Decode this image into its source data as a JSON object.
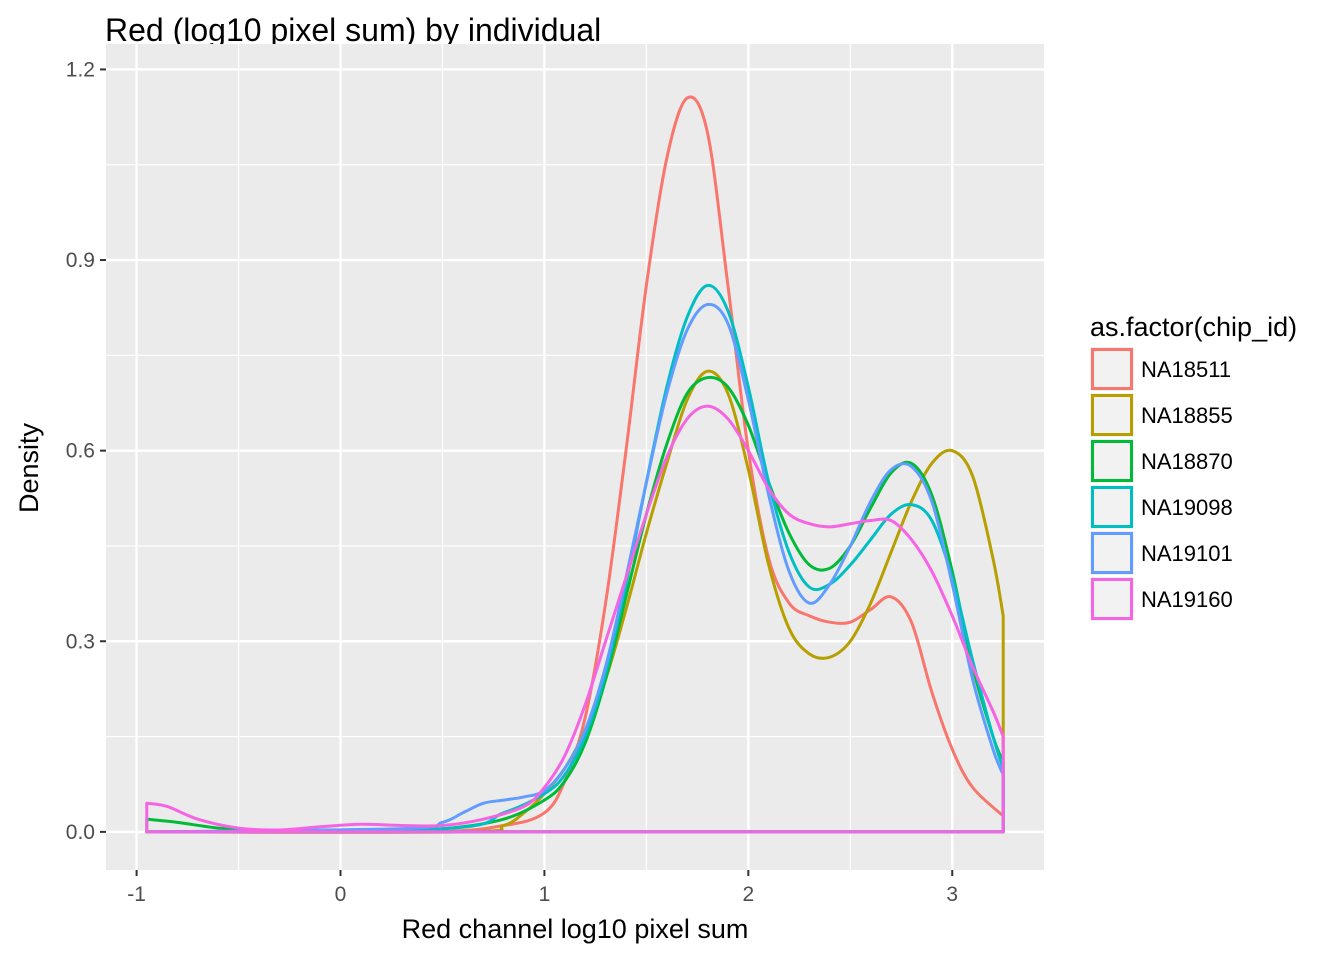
{
  "chart_data": {
    "type": "line",
    "title": "Red (log10 pixel sum) by individual",
    "xlabel": "Red channel log10 pixel sum",
    "ylabel": "Density",
    "xlim": [
      -1.15,
      3.45
    ],
    "ylim": [
      -0.06,
      1.24
    ],
    "x_ticks": [
      -1,
      0,
      1,
      2,
      3
    ],
    "x_tick_labels": [
      "-1",
      "0",
      "1",
      "2",
      "3"
    ],
    "y_ticks": [
      0.0,
      0.3,
      0.6,
      0.9,
      1.2
    ],
    "y_tick_labels": [
      "0.0",
      "0.3",
      "0.6",
      "0.9",
      "1.2"
    ],
    "grid": true,
    "panel_background": "#ebebeb",
    "legend": {
      "title": "as.factor(chip_id)",
      "placement": "right"
    },
    "series": [
      {
        "name": "NA18511",
        "color": "#F8766D",
        "points": [
          [
            -0.95,
            0
          ],
          [
            0.4,
            0.0
          ],
          [
            0.8,
            0.01
          ],
          [
            1.0,
            0.03
          ],
          [
            1.1,
            0.08
          ],
          [
            1.2,
            0.18
          ],
          [
            1.3,
            0.36
          ],
          [
            1.4,
            0.6
          ],
          [
            1.5,
            0.86
          ],
          [
            1.6,
            1.06
          ],
          [
            1.7,
            1.155
          ],
          [
            1.8,
            1.1
          ],
          [
            1.9,
            0.86
          ],
          [
            2.0,
            0.6
          ],
          [
            2.1,
            0.43
          ],
          [
            2.2,
            0.36
          ],
          [
            2.3,
            0.34
          ],
          [
            2.4,
            0.33
          ],
          [
            2.5,
            0.33
          ],
          [
            2.6,
            0.35
          ],
          [
            2.7,
            0.37
          ],
          [
            2.8,
            0.33
          ],
          [
            2.9,
            0.22
          ],
          [
            3.0,
            0.13
          ],
          [
            3.1,
            0.07
          ],
          [
            3.25,
            0.025
          ]
        ]
      },
      {
        "name": "NA18855",
        "color": "#B79F00",
        "points": [
          [
            -0.95,
            0
          ],
          [
            0.6,
            0.0
          ],
          [
            0.8,
            0.01
          ],
          [
            0.9,
            0.03
          ],
          [
            1.0,
            0.06
          ],
          [
            1.1,
            0.1
          ],
          [
            1.2,
            0.16
          ],
          [
            1.3,
            0.24
          ],
          [
            1.4,
            0.35
          ],
          [
            1.5,
            0.47
          ],
          [
            1.6,
            0.58
          ],
          [
            1.7,
            0.68
          ],
          [
            1.8,
            0.725
          ],
          [
            1.9,
            0.69
          ],
          [
            2.0,
            0.57
          ],
          [
            2.1,
            0.42
          ],
          [
            2.2,
            0.32
          ],
          [
            2.3,
            0.28
          ],
          [
            2.4,
            0.275
          ],
          [
            2.5,
            0.3
          ],
          [
            2.6,
            0.36
          ],
          [
            2.7,
            0.44
          ],
          [
            2.8,
            0.52
          ],
          [
            2.9,
            0.58
          ],
          [
            3.0,
            0.6
          ],
          [
            3.1,
            0.56
          ],
          [
            3.2,
            0.43
          ],
          [
            3.25,
            0.34
          ]
        ]
      },
      {
        "name": "NA18870",
        "color": "#00BA38",
        "points": [
          [
            -0.95,
            0.02
          ],
          [
            -0.8,
            0.015
          ],
          [
            -0.6,
            0.006
          ],
          [
            -0.4,
            0.002
          ],
          [
            0.0,
            0.0
          ],
          [
            0.5,
            0.005
          ],
          [
            0.8,
            0.02
          ],
          [
            1.0,
            0.05
          ],
          [
            1.1,
            0.08
          ],
          [
            1.2,
            0.14
          ],
          [
            1.3,
            0.24
          ],
          [
            1.4,
            0.37
          ],
          [
            1.5,
            0.5
          ],
          [
            1.6,
            0.61
          ],
          [
            1.7,
            0.69
          ],
          [
            1.8,
            0.715
          ],
          [
            1.9,
            0.7
          ],
          [
            2.0,
            0.64
          ],
          [
            2.1,
            0.55
          ],
          [
            2.2,
            0.47
          ],
          [
            2.3,
            0.42
          ],
          [
            2.4,
            0.415
          ],
          [
            2.5,
            0.45
          ],
          [
            2.6,
            0.51
          ],
          [
            2.7,
            0.565
          ],
          [
            2.8,
            0.58
          ],
          [
            2.9,
            0.53
          ],
          [
            3.0,
            0.41
          ],
          [
            3.1,
            0.26
          ],
          [
            3.2,
            0.15
          ],
          [
            3.25,
            0.11
          ]
        ]
      },
      {
        "name": "NA19098",
        "color": "#00BFC4",
        "points": [
          [
            -0.95,
            0
          ],
          [
            0.5,
            0.005
          ],
          [
            0.8,
            0.03
          ],
          [
            1.0,
            0.06
          ],
          [
            1.1,
            0.09
          ],
          [
            1.2,
            0.15
          ],
          [
            1.3,
            0.25
          ],
          [
            1.4,
            0.39
          ],
          [
            1.5,
            0.55
          ],
          [
            1.6,
            0.7
          ],
          [
            1.7,
            0.81
          ],
          [
            1.8,
            0.86
          ],
          [
            1.9,
            0.82
          ],
          [
            2.0,
            0.7
          ],
          [
            2.1,
            0.55
          ],
          [
            2.2,
            0.44
          ],
          [
            2.3,
            0.385
          ],
          [
            2.4,
            0.39
          ],
          [
            2.5,
            0.42
          ],
          [
            2.6,
            0.46
          ],
          [
            2.7,
            0.5
          ],
          [
            2.8,
            0.515
          ],
          [
            2.9,
            0.49
          ],
          [
            3.0,
            0.4
          ],
          [
            3.1,
            0.27
          ],
          [
            3.2,
            0.15
          ],
          [
            3.25,
            0.1
          ]
        ]
      },
      {
        "name": "NA19101",
        "color": "#619CFF",
        "points": [
          [
            -0.95,
            0
          ],
          [
            0.3,
            0.005
          ],
          [
            0.5,
            0.015
          ],
          [
            0.6,
            0.03
          ],
          [
            0.7,
            0.045
          ],
          [
            0.8,
            0.05
          ],
          [
            0.9,
            0.055
          ],
          [
            1.0,
            0.065
          ],
          [
            1.1,
            0.1
          ],
          [
            1.2,
            0.16
          ],
          [
            1.3,
            0.26
          ],
          [
            1.4,
            0.4
          ],
          [
            1.5,
            0.55
          ],
          [
            1.6,
            0.69
          ],
          [
            1.7,
            0.79
          ],
          [
            1.8,
            0.83
          ],
          [
            1.9,
            0.8
          ],
          [
            2.0,
            0.68
          ],
          [
            2.1,
            0.53
          ],
          [
            2.2,
            0.41
          ],
          [
            2.3,
            0.36
          ],
          [
            2.4,
            0.39
          ],
          [
            2.5,
            0.45
          ],
          [
            2.6,
            0.52
          ],
          [
            2.7,
            0.57
          ],
          [
            2.8,
            0.575
          ],
          [
            2.9,
            0.52
          ],
          [
            3.0,
            0.39
          ],
          [
            3.1,
            0.24
          ],
          [
            3.2,
            0.13
          ],
          [
            3.25,
            0.09
          ]
        ]
      },
      {
        "name": "NA19160",
        "color": "#F564E3",
        "points": [
          [
            -0.95,
            0.045
          ],
          [
            -0.85,
            0.04
          ],
          [
            -0.7,
            0.02
          ],
          [
            -0.5,
            0.006
          ],
          [
            -0.3,
            0.003
          ],
          [
            -0.1,
            0.008
          ],
          [
            0.1,
            0.012
          ],
          [
            0.3,
            0.01
          ],
          [
            0.5,
            0.01
          ],
          [
            0.7,
            0.02
          ],
          [
            0.9,
            0.04
          ],
          [
            1.0,
            0.07
          ],
          [
            1.1,
            0.12
          ],
          [
            1.2,
            0.2
          ],
          [
            1.3,
            0.3
          ],
          [
            1.4,
            0.4
          ],
          [
            1.5,
            0.5
          ],
          [
            1.6,
            0.59
          ],
          [
            1.7,
            0.65
          ],
          [
            1.8,
            0.67
          ],
          [
            1.9,
            0.65
          ],
          [
            2.0,
            0.6
          ],
          [
            2.1,
            0.54
          ],
          [
            2.2,
            0.5
          ],
          [
            2.3,
            0.485
          ],
          [
            2.4,
            0.48
          ],
          [
            2.5,
            0.485
          ],
          [
            2.6,
            0.49
          ],
          [
            2.7,
            0.49
          ],
          [
            2.8,
            0.46
          ],
          [
            2.9,
            0.41
          ],
          [
            3.0,
            0.34
          ],
          [
            3.1,
            0.26
          ],
          [
            3.2,
            0.19
          ],
          [
            3.25,
            0.15
          ]
        ]
      }
    ]
  }
}
